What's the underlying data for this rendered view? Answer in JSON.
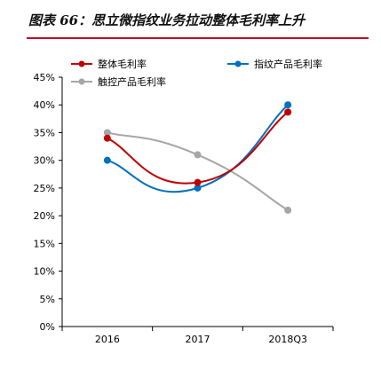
{
  "title": "图表 66：思立微指纹业务拉动整体毛利率上升",
  "chart_data": {
    "type": "line",
    "categories": [
      "2016",
      "2017",
      "2018Q3"
    ],
    "ylim": [
      0,
      45
    ],
    "yticks": [
      "0%",
      "5%",
      "10%",
      "15%",
      "20%",
      "25%",
      "30%",
      "35%",
      "40%",
      "45%"
    ],
    "grid": false,
    "legend_position": "top",
    "series": [
      {
        "name": "整体毛利率",
        "values": [
          34,
          26,
          38.7
        ],
        "color": "#c00000"
      },
      {
        "name": "指纹产品毛利率",
        "values": [
          30,
          25,
          40
        ],
        "color": "#0070c0"
      },
      {
        "name": "触控产品毛利率",
        "values": [
          35,
          31,
          21
        ],
        "color": "#a6a6a6"
      }
    ]
  }
}
